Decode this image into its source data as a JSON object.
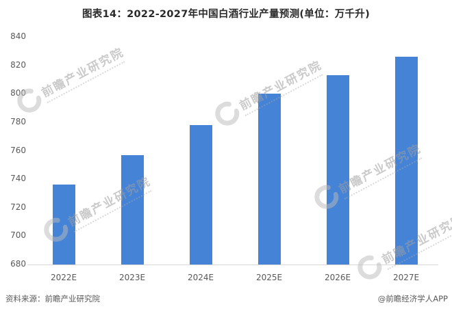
{
  "header": {
    "title": "图表14：2022-2027年中国白酒行业产量预测(单位：万千升)"
  },
  "chart_data": {
    "type": "bar",
    "title": "图表14：2022-2027年中国白酒行业产量预测(单位：万千升)",
    "unit": "万千升",
    "categories": [
      "2022E",
      "2023E",
      "2024E",
      "2025E",
      "2026E",
      "2027E"
    ],
    "values": [
      736,
      757,
      778,
      800,
      813,
      826
    ],
    "ylim": [
      680,
      840
    ],
    "yticks": [
      680,
      700,
      720,
      740,
      760,
      780,
      800,
      820,
      840
    ],
    "xlabel": "",
    "ylabel": "",
    "grid": false,
    "legend": "none",
    "bar_color": "#4583d7",
    "axis_text_color": "#595959",
    "baseline_color": "#d9d9d9"
  },
  "watermark": {
    "text": "前瞻产业研究院",
    "logo": "qianzhan-crescent-logo"
  },
  "footer": {
    "source": "资料来源：前瞻产业研究院",
    "credit": "@前瞻经济学人APP"
  }
}
